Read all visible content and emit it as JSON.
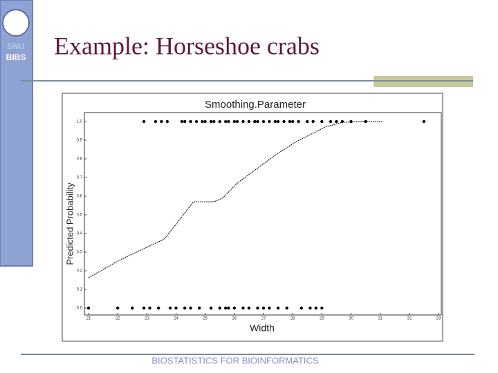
{
  "slide": {
    "title": "Example: Horseshoe crabs",
    "footer": "BIOSTATISTICS FOR BIOINFORMATICS",
    "logo": [
      "SNU",
      "BIBS"
    ]
  },
  "chart_data": {
    "type": "scatter",
    "title": "Smoothing.Parameter",
    "x_label": "Width",
    "y_label": "Predicted Probability",
    "xlim": [
      21,
      33
    ],
    "ylim": [
      0,
      1
    ],
    "xticks": [
      21,
      22,
      23,
      24,
      25,
      26,
      27,
      28,
      29,
      30,
      31,
      32,
      33
    ],
    "yticks": [
      {
        "value": 0,
        "label": "0.0"
      },
      0.1,
      0.2,
      0.3,
      0.4,
      0.5,
      0.6,
      0.7,
      0.8,
      0.9,
      {
        "value": 1,
        "label": "1.0"
      }
    ],
    "series": [
      {
        "type": "scatter",
        "color": "#000000",
        "x": [
          22.9,
          23.3,
          23.5,
          23.7,
          24.2,
          24.3,
          24.5,
          24.7,
          24.9,
          25.0,
          25.2,
          25.3,
          25.5,
          25.7,
          25.8,
          26.0,
          26.1,
          26.3,
          26.5,
          26.7,
          26.8,
          27.0,
          27.2,
          27.4,
          27.5,
          27.7,
          27.9,
          28.0,
          28.2,
          28.5,
          28.7,
          29.0,
          29.3,
          29.5,
          29.7,
          30.0,
          30.5,
          32.5
        ],
        "values": [
          1,
          1,
          1,
          1,
          1,
          1,
          1,
          1,
          1,
          1,
          1,
          1,
          1,
          1,
          1,
          1,
          1,
          1,
          1,
          1,
          1,
          1,
          1,
          1,
          1,
          1,
          1,
          1,
          1,
          1,
          1,
          1,
          1,
          1,
          1,
          1,
          1,
          1
        ]
      },
      {
        "type": "scatter",
        "color": "#000000",
        "x": [
          21.0,
          22.0,
          22.5,
          22.9,
          23.1,
          23.4,
          23.8,
          24.0,
          24.3,
          24.5,
          24.8,
          25.2,
          25.5,
          25.7,
          25.8,
          26.0,
          26.3,
          26.5,
          26.8,
          27.0,
          27.2,
          27.5,
          27.8,
          28.3,
          28.6,
          28.8,
          29.0
        ],
        "values": [
          0,
          0,
          0,
          0,
          0,
          0,
          0,
          0,
          0,
          0,
          0,
          0,
          0,
          0,
          0,
          0,
          0,
          0,
          0,
          0,
          0,
          0,
          0,
          0,
          0,
          0,
          0
        ]
      },
      {
        "type": "line",
        "color": "#000000",
        "x": [
          21.0,
          22.1,
          23.6,
          24.6,
          25.3,
          25.6,
          26.1,
          27.4,
          28.1,
          29.1,
          29.7,
          30.3,
          31.1
        ],
        "values": [
          0.163,
          0.26,
          0.37,
          0.57,
          0.57,
          0.59,
          0.67,
          0.82,
          0.89,
          0.97,
          0.996,
          1.0,
          1.0
        ]
      }
    ]
  }
}
